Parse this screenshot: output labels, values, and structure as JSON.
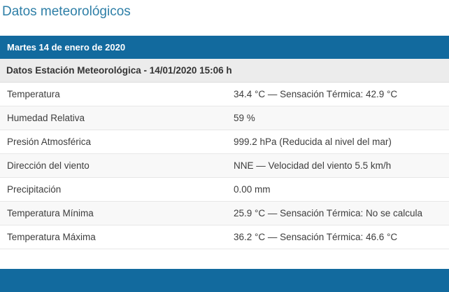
{
  "page": {
    "title": "Datos meteorológicos"
  },
  "sections": {
    "date_bar": "Martes 14 de enero de 2020",
    "station_header": "Datos Estación Meteorológica - 14/01/2020 15:06 h"
  },
  "table": {
    "rows": [
      {
        "label": "Temperatura",
        "value": "34.4 °C — Sensación Térmica: 42.9 °C"
      },
      {
        "label": "Humedad Relativa",
        "value": "59 %"
      },
      {
        "label": "Presión Atmosférica",
        "value": "999.2 hPa (Reducida al nivel del mar)"
      },
      {
        "label": "Dirección del viento",
        "value": "NNE — Velocidad del viento 5.5 km/h"
      },
      {
        "label": "Precipitación",
        "value": "0.00 mm"
      },
      {
        "label": "Temperatura Mínima",
        "value": "25.9 °C — Sensación Térmica: No se calcula"
      },
      {
        "label": "Temperatura Máxima",
        "value": "36.2 °C — Sensación Térmica: 46.6 °C"
      }
    ]
  },
  "colors": {
    "bar_blue": "#126a9e",
    "title_blue": "#2e7fa7",
    "header_gray": "#ececec",
    "row_stripe": "#f8f8f8"
  }
}
